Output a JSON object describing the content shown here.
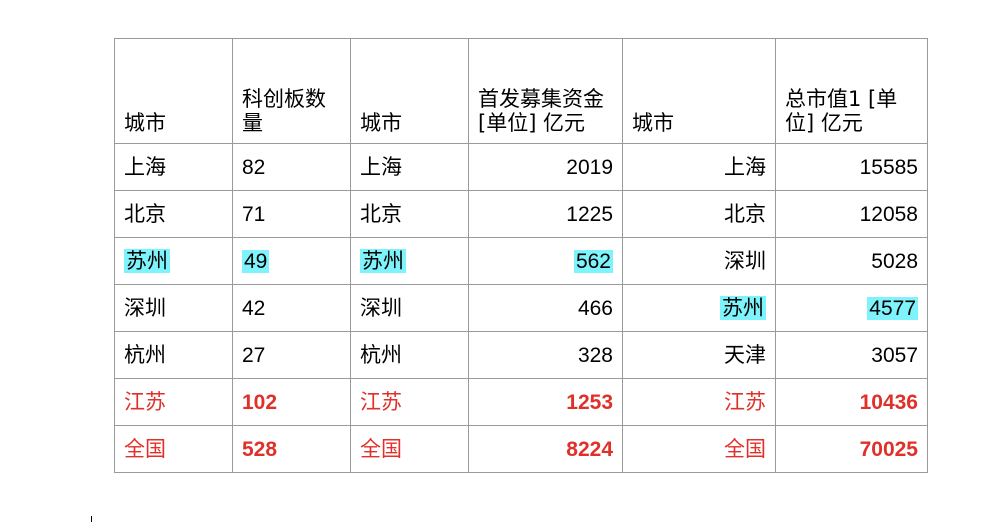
{
  "colors": {
    "highlight": "#7ff3fb",
    "summary_text": "#e0302a",
    "border": "#9a9a9a"
  },
  "headers": [
    "城市",
    "科创板数量",
    "城市",
    "首发募集资金[单位] 亿元",
    "城市",
    "总市值1 [单位] 亿元"
  ],
  "rows": [
    {
      "c1": "上海",
      "n1": "82",
      "c2": "上海",
      "n2": "2019",
      "c3": "上海",
      "n3": "15585"
    },
    {
      "c1": "北京",
      "n1": "71",
      "c2": "北京",
      "n2": "1225",
      "c3": "北京",
      "n3": "12058"
    },
    {
      "c1": "苏州",
      "n1": "49",
      "c2": "苏州",
      "n2": "562",
      "c3": "深圳",
      "n3": "5028"
    },
    {
      "c1": "深圳",
      "n1": "42",
      "c2": "深圳",
      "n2": "466",
      "c3": "苏州",
      "n3": "4577"
    },
    {
      "c1": "杭州",
      "n1": "27",
      "c2": "杭州",
      "n2": "328",
      "c3": "天津",
      "n3": "3057"
    },
    {
      "c1": "江苏",
      "n1": "102",
      "c2": "江苏",
      "n2": "1253",
      "c3": "江苏",
      "n3": "10436"
    },
    {
      "c1": "全国",
      "n1": "528",
      "c2": "全国",
      "n2": "8224",
      "c3": "全国",
      "n3": "70025"
    }
  ]
}
